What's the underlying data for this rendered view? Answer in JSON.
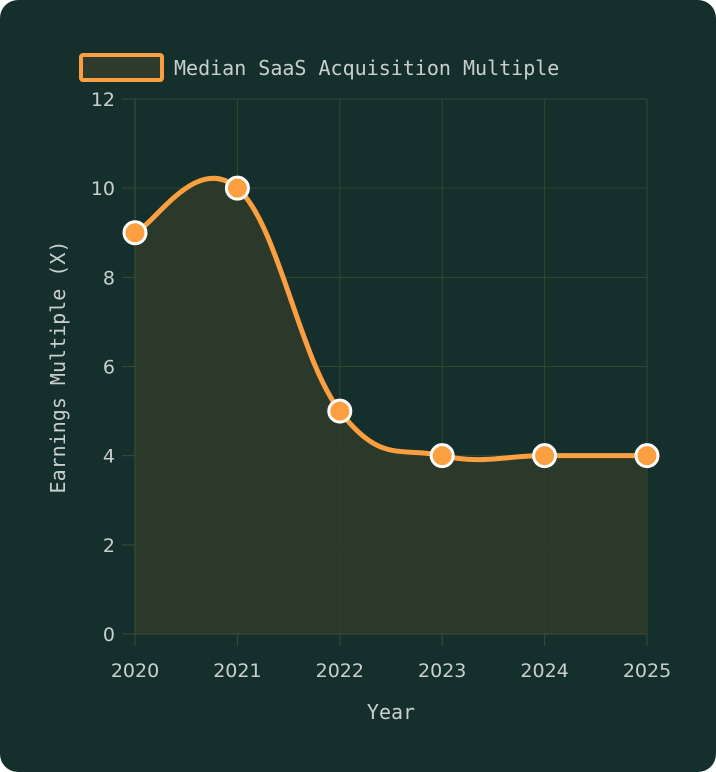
{
  "colors": {
    "background": "#15302c",
    "line": "#fb9f40",
    "area_fill": "#2f3b2c",
    "grid": "#34472e",
    "axis": "#3a4a32",
    "text": "#c9cfcd",
    "marker_stroke": "#ffffff"
  },
  "chart_data": {
    "type": "area",
    "x": [
      "2020",
      "2021",
      "2022",
      "2023",
      "2024",
      "2025"
    ],
    "series": [
      {
        "name": "Median SaaS Acquisition Multiple",
        "values": [
          9,
          10,
          5,
          4,
          4,
          4
        ]
      }
    ],
    "xlabel": "Year",
    "ylabel": "Earnings Multiple (X)",
    "ylim": [
      0,
      12
    ],
    "yticks": [
      "0",
      "2",
      "4",
      "6",
      "8",
      "10",
      "12"
    ],
    "grid": true,
    "legend_position": "top-center",
    "smooth": true,
    "markers": true
  }
}
